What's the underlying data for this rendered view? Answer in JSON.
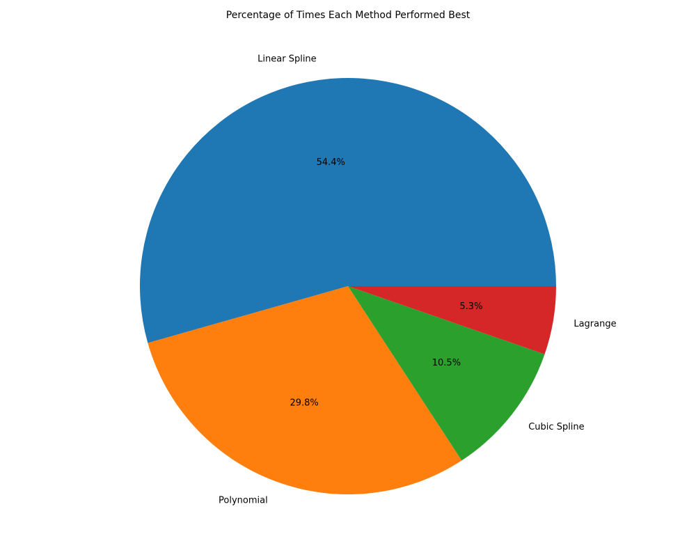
{
  "chart_data": {
    "type": "pie",
    "title": "Percentage of Times Each Method Performed Best",
    "slices": [
      {
        "label": "Linear Spline",
        "value": 54.4,
        "pct_label": "54.4%",
        "color": "#1f77b4"
      },
      {
        "label": "Polynomial",
        "value": 29.8,
        "pct_label": "29.8%",
        "color": "#ff7f0e"
      },
      {
        "label": "Cubic Spline",
        "value": 10.5,
        "pct_label": "10.5%",
        "color": "#2ca02c"
      },
      {
        "label": "Lagrange",
        "value": 5.3,
        "pct_label": "5.3%",
        "color": "#d62728"
      }
    ],
    "start_angle_deg": 0,
    "direction": "counterclockwise",
    "legend": "none"
  }
}
